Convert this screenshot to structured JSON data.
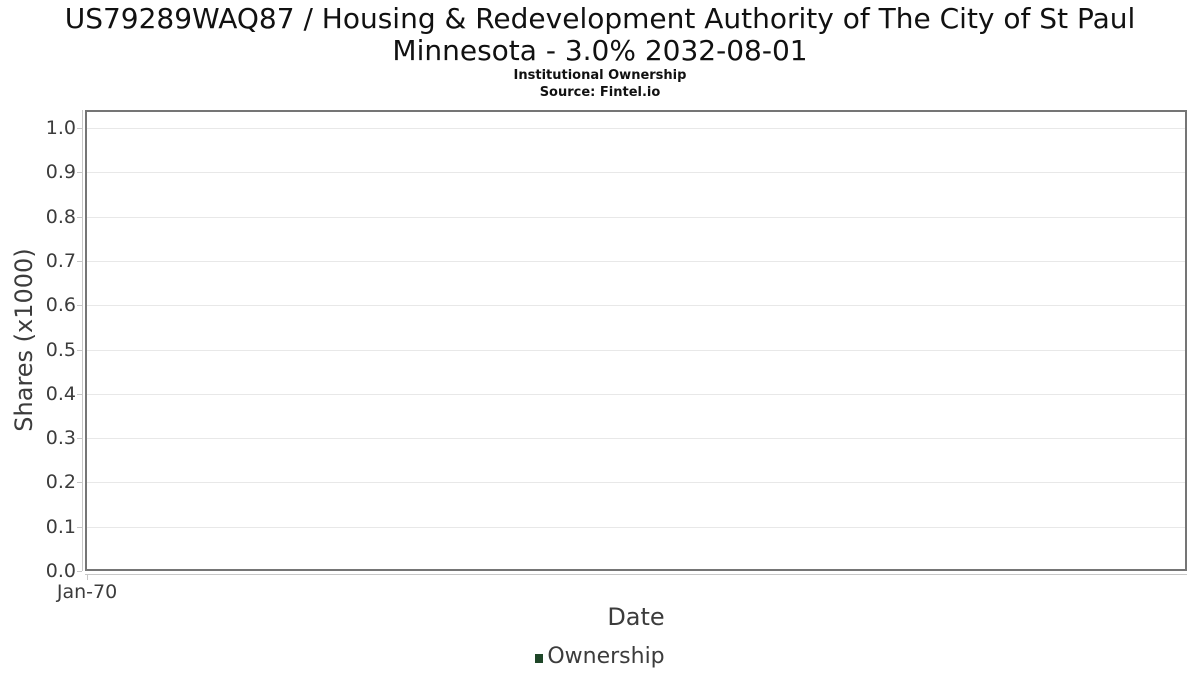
{
  "title": {
    "line1": "US79289WAQ87 / Housing & Redevelopment Authority of The City of St Paul",
    "line2": "Minnesota - 3.0% 2032-08-01",
    "subtitle": "Institutional Ownership",
    "source": "Source: Fintel.io"
  },
  "chart_data": {
    "type": "line",
    "title": "US79289WAQ87 / Housing & Redevelopment Authority of The City of St Paul Minnesota - 3.0% 2032-08-01",
    "subtitle": "Institutional Ownership",
    "source": "Source: Fintel.io",
    "xlabel": "Date",
    "ylabel": "Shares (x1000)",
    "ylim": [
      0.0,
      1.04
    ],
    "yticks": [
      {
        "value": 0.0,
        "label": "0.0"
      },
      {
        "value": 0.1,
        "label": "0.1"
      },
      {
        "value": 0.2,
        "label": "0.2"
      },
      {
        "value": 0.3,
        "label": "0.3"
      },
      {
        "value": 0.4,
        "label": "0.4"
      },
      {
        "value": 0.5,
        "label": "0.5"
      },
      {
        "value": 0.6,
        "label": "0.6"
      },
      {
        "value": 0.7,
        "label": "0.7"
      },
      {
        "value": 0.8,
        "label": "0.8"
      },
      {
        "value": 0.9,
        "label": "0.9"
      },
      {
        "value": 1.0,
        "label": "1.0"
      }
    ],
    "xticks": [
      "Jan-70"
    ],
    "grid": true,
    "legend_position": "bottom",
    "series": [
      {
        "name": "Ownership",
        "color": "#1e4628",
        "x": [],
        "values": []
      }
    ]
  },
  "legend": {
    "items": [
      {
        "label": "Ownership",
        "color": "#1e4628"
      }
    ]
  },
  "colors": {
    "plot_border": "#757575",
    "gridline": "#e8e8e8",
    "axis_line": "#c8c8c8",
    "tick_text": "#3c3c3c",
    "title_text": "#111111",
    "legend_swatch": "#1e4628"
  }
}
